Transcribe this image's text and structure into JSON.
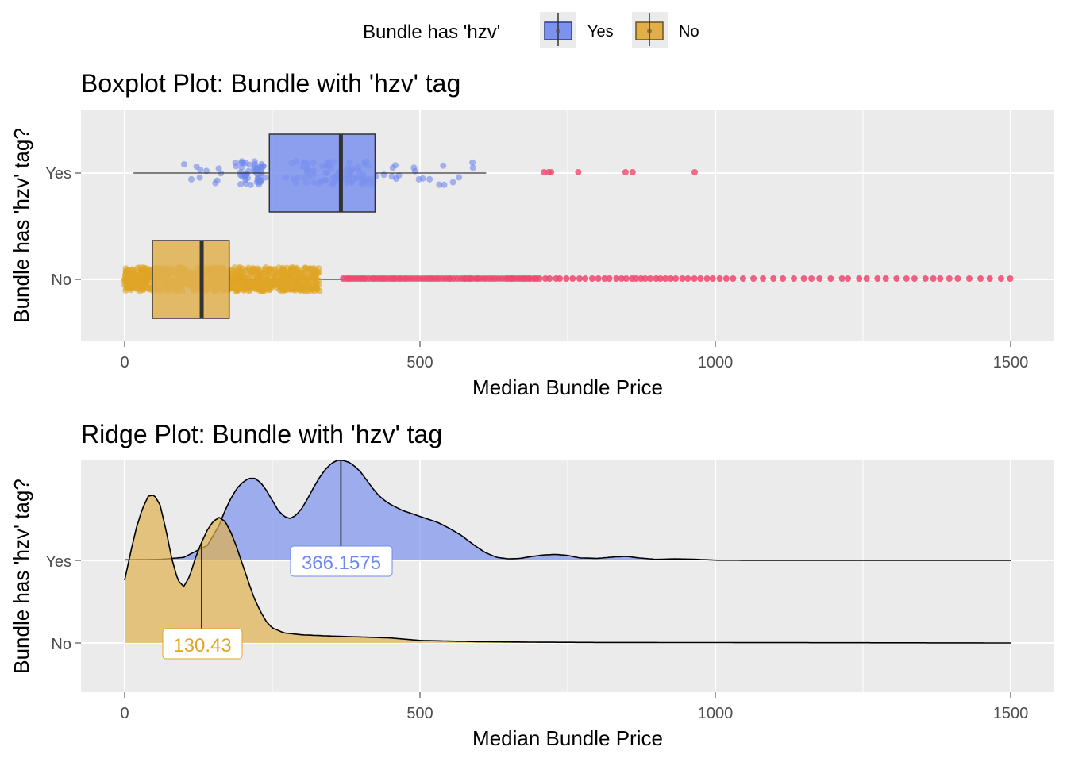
{
  "legend": {
    "title": "Bundle has 'hzv'",
    "entries": [
      {
        "label": "Yes",
        "fill": "#7b92ee",
        "line": "#2b3a8c"
      },
      {
        "label": "No",
        "fill": "#e2ae48",
        "line": "#6b5320"
      }
    ],
    "position": "top"
  },
  "colors": {
    "yes_fill": "#7b92ee",
    "yes_point": "#6f88ec",
    "no_fill": "#e0b050",
    "no_point": "#e0a524",
    "outlier": "#f0476d",
    "panel_bg": "#ebebeb",
    "grid": "#ffffff"
  },
  "boxplot": {
    "title": "Boxplot Plot: Bundle with 'hzv' tag",
    "xlabel": "Median Bundle Price",
    "ylabel": "Bundle has 'hzv' tag?",
    "categories": [
      "Yes",
      "No"
    ],
    "xticks": [
      0,
      500,
      1000,
      1500
    ],
    "xtick_labels": [
      "0",
      "500",
      "1000",
      "1500"
    ]
  },
  "ridge": {
    "title": "Ridge Plot: Bundle with 'hzv' tag",
    "xlabel": "Median Bundle Price",
    "ylabel": "Bundle has 'hzv' tag?",
    "categories": [
      "Yes",
      "No"
    ],
    "xticks": [
      0,
      500,
      1000,
      1500
    ],
    "xtick_labels": [
      "0",
      "500",
      "1000",
      "1500"
    ],
    "median_labels": {
      "yes": "366.1575",
      "no": "130.43"
    }
  },
  "chart_data": [
    {
      "type": "boxplot",
      "title": "Boxplot Plot: Bundle with 'hzv' tag",
      "xlabel": "Median Bundle Price",
      "ylabel": "Bundle has 'hzv' tag?",
      "xlim": [
        -75,
        1575
      ],
      "grid": true,
      "series": [
        {
          "name": "Yes",
          "whisker_low": 15,
          "q1": 245,
          "median": 366.1575,
          "q3": 424,
          "whisker_high": 612,
          "outliers": [
            710,
            718,
            722,
            768,
            848,
            860,
            965
          ],
          "jitter_range": [
            100,
            612
          ]
        },
        {
          "name": "No",
          "whisker_low": 0,
          "q1": 47,
          "median": 130.43,
          "q3": 177,
          "whisker_high": 370,
          "outliers_range": [
            370,
            1500
          ],
          "jitter_range": [
            0,
            330
          ]
        }
      ]
    },
    {
      "type": "area",
      "subtype": "ridgeline",
      "title": "Ridge Plot: Bundle with 'hzv' tag",
      "xlabel": "Median Bundle Price",
      "ylabel": "Bundle has 'hzv' tag?",
      "xlim": [
        -75,
        1575
      ],
      "grid": true,
      "series": [
        {
          "name": "Yes",
          "median": 366.1575,
          "x": [
            0,
            60,
            100,
            140,
            160,
            170,
            180,
            190,
            200,
            210,
            220,
            230,
            240,
            250,
            260,
            270,
            280,
            290,
            300,
            310,
            320,
            330,
            340,
            350,
            360,
            370,
            380,
            390,
            400,
            410,
            420,
            430,
            440,
            450,
            470,
            500,
            530,
            550,
            570,
            590,
            610,
            630,
            650,
            670,
            690,
            710,
            730,
            750,
            770,
            800,
            830,
            850,
            870,
            900,
            930,
            960,
            990,
            1000,
            1100,
            1200,
            1300,
            1400,
            1500
          ],
          "density": [
            0.005,
            0.01,
            0.03,
            0.15,
            0.35,
            0.5,
            0.62,
            0.72,
            0.78,
            0.82,
            0.82,
            0.78,
            0.7,
            0.6,
            0.5,
            0.44,
            0.42,
            0.45,
            0.52,
            0.62,
            0.73,
            0.83,
            0.91,
            0.97,
            1.0,
            1.0,
            0.98,
            0.94,
            0.88,
            0.8,
            0.72,
            0.65,
            0.6,
            0.56,
            0.5,
            0.44,
            0.38,
            0.32,
            0.25,
            0.16,
            0.08,
            0.03,
            0.015,
            0.02,
            0.04,
            0.055,
            0.06,
            0.05,
            0.025,
            0.02,
            0.035,
            0.04,
            0.025,
            0.01,
            0.015,
            0.012,
            0.005,
            0.002,
            0.0,
            0.0,
            0.0,
            0.0,
            0.0
          ]
        },
        {
          "name": "No",
          "median": 130.43,
          "x": [
            0,
            10,
            20,
            30,
            40,
            50,
            60,
            70,
            80,
            90,
            100,
            110,
            120,
            130,
            140,
            150,
            160,
            170,
            180,
            190,
            200,
            210,
            220,
            230,
            240,
            250,
            270,
            300,
            350,
            400,
            450,
            500,
            600,
            700,
            800,
            1000,
            1200,
            1500
          ],
          "density": [
            0.5,
            0.72,
            0.92,
            1.07,
            1.17,
            1.18,
            1.1,
            0.9,
            0.67,
            0.5,
            0.45,
            0.53,
            0.68,
            0.8,
            0.9,
            0.97,
            1.0,
            0.97,
            0.88,
            0.76,
            0.62,
            0.48,
            0.35,
            0.25,
            0.17,
            0.12,
            0.08,
            0.065,
            0.055,
            0.048,
            0.04,
            0.02,
            0.01,
            0.006,
            0.004,
            0.003,
            0.002,
            0.0
          ]
        }
      ]
    }
  ]
}
